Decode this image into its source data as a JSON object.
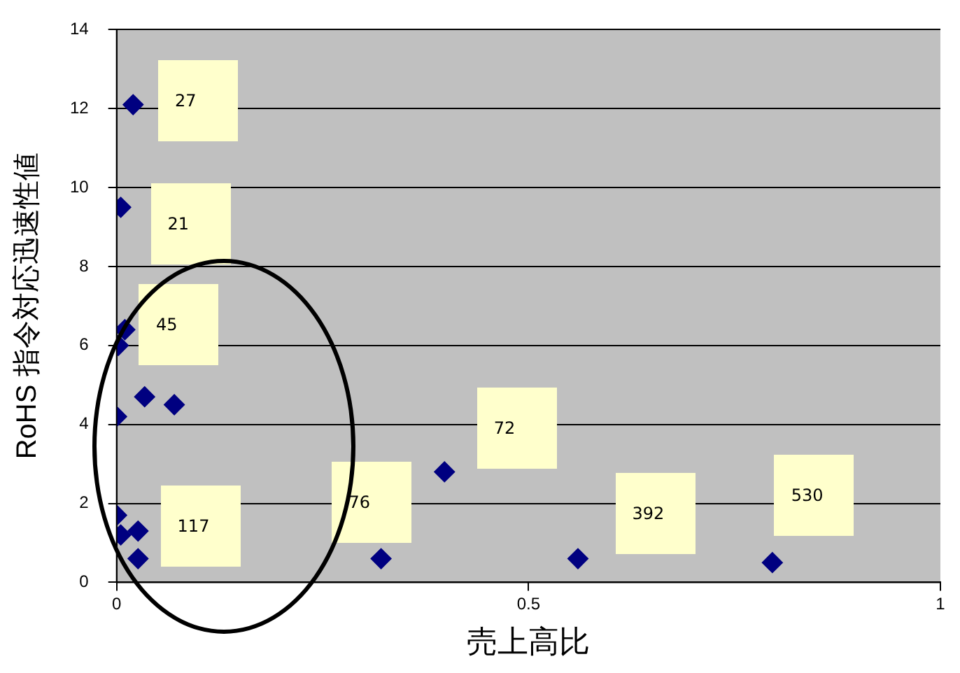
{
  "chart_data": {
    "type": "scatter",
    "xlabel": "売上高比",
    "ylabel": "RoHS 指令対応迅速性値",
    "x": [
      0.02,
      0.005,
      0.01,
      0.002,
      0,
      0.034,
      0.07,
      0,
      0.005,
      0.026,
      0.026,
      0.398,
      0.321,
      0.56,
      0.796
    ],
    "values": [
      12.1,
      9.5,
      6.4,
      6.0,
      4.2,
      4.7,
      4.5,
      1.7,
      1.2,
      1.3,
      0.6,
      2.8,
      0.6,
      0.6,
      0.5
    ],
    "color": "#000080",
    "marker": "diamond",
    "xlim": [
      0,
      1
    ],
    "xticks": [
      0,
      0.5,
      1
    ],
    "ylim": [
      0,
      14
    ],
    "yticks": [
      0,
      2,
      4,
      6,
      8,
      10,
      12,
      14
    ],
    "grid": "y",
    "annotations": [
      "27",
      "21",
      "45",
      "117",
      "76",
      "72",
      "392",
      "530"
    ]
  }
}
